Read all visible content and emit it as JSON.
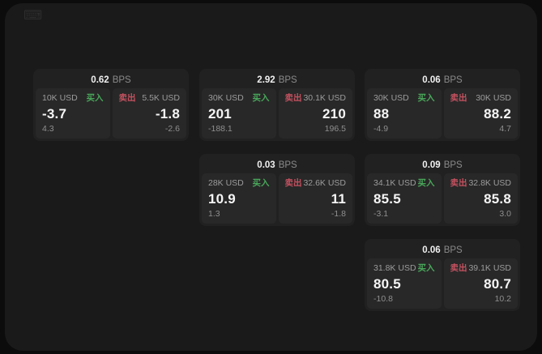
{
  "page": {
    "bps_suffix": "BPS",
    "buy_label": "买入",
    "sell_label": "卖出"
  },
  "icons": {
    "top_left": {
      "name": "keyboard-icon",
      "glyph": "⌨"
    }
  },
  "colors": {
    "outer_background": "#0c0c0c",
    "surface": "#1a1a1a",
    "card_background": "#212121",
    "panel_background": "#282828",
    "text_primary": "#f5f5f5",
    "text_secondary": "#9c9c9c",
    "buy_green": "#49a75a",
    "sell_red": "#c4515f"
  },
  "cards": [
    {
      "bps": "0.62",
      "buy": {
        "size": "10K USD",
        "price": "-3.7",
        "delta": "4.3"
      },
      "sell": {
        "size": "5.5K USD",
        "price": "-1.8",
        "delta": "-2.6"
      }
    },
    {
      "bps": "2.92",
      "buy": {
        "size": "30K USD",
        "price": "201",
        "delta": "-188.1"
      },
      "sell": {
        "size": "30.1K USD",
        "price": "210",
        "delta": "196.5"
      }
    },
    {
      "bps": "0.06",
      "buy": {
        "size": "30K USD",
        "price": "88",
        "delta": "-4.9"
      },
      "sell": {
        "size": "30K USD",
        "price": "88.2",
        "delta": "4.7"
      }
    },
    {
      "bps": "0.03",
      "buy": {
        "size": "28K USD",
        "price": "10.9",
        "delta": "1.3"
      },
      "sell": {
        "size": "32.6K USD",
        "price": "11",
        "delta": "-1.8"
      }
    },
    {
      "bps": "0.09",
      "buy": {
        "size": "34.1K USD",
        "price": "85.5",
        "delta": "-3.1"
      },
      "sell": {
        "size": "32.8K USD",
        "price": "85.8",
        "delta": "3.0"
      }
    },
    {
      "bps": "0.06",
      "buy": {
        "size": "31.8K USD",
        "price": "80.5",
        "delta": "-10.8"
      },
      "sell": {
        "size": "39.1K USD",
        "price": "80.7",
        "delta": "10.2"
      }
    }
  ]
}
